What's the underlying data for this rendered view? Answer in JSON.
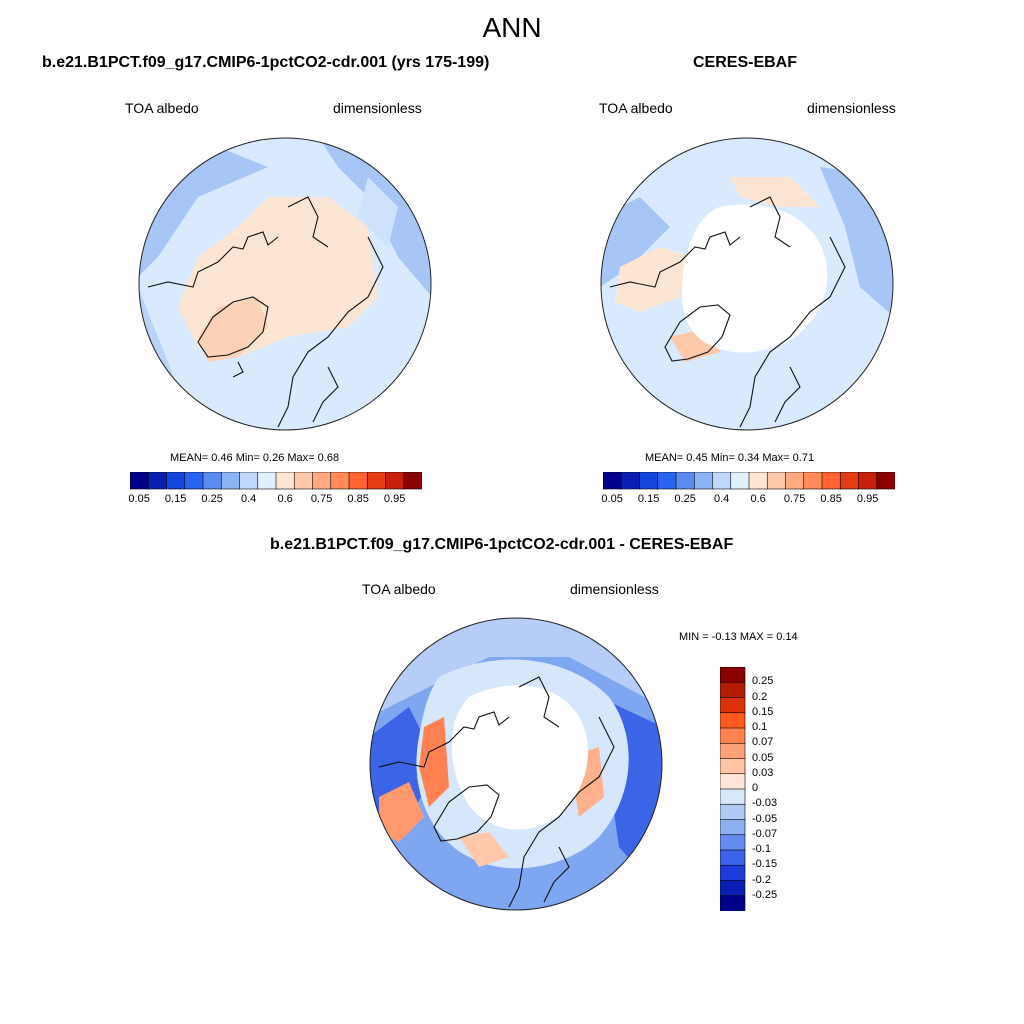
{
  "title": "ANN",
  "panels": [
    {
      "title": "b.e21.B1PCT.f09_g17.CMIP6-1pctCO2-cdr.001 (yrs 175-199)",
      "variable": "TOA albedo",
      "units": "dimensionless",
      "stats": "MEAN=   0.46  Min=   0.26  Max=   0.68"
    },
    {
      "title": "CERES-EBAF",
      "variable": "TOA albedo",
      "units": "dimensionless",
      "stats": "MEAN=   0.45  Min=   0.34  Max=   0.71"
    },
    {
      "title": "b.e21.B1PCT.f09_g17.CMIP6-1pctCO2-cdr.001 - CERES-EBAF",
      "variable": "TOA albedo",
      "units": "dimensionless",
      "stats": "MIN =  -0.13 MAX =   0.14"
    }
  ],
  "colorbar_main": {
    "labels": [
      "0.05",
      "0.15",
      "0.25",
      "0.4",
      "0.6",
      "0.75",
      "0.85",
      "0.95"
    ],
    "colors": [
      "#00008b",
      "#0a1eb4",
      "#1446dc",
      "#2864f0",
      "#5a8cf0",
      "#8cb4f5",
      "#bed7fa",
      "#e1f0ff",
      "#ffe6d2",
      "#ffc8aa",
      "#ffaa82",
      "#ff8c5a",
      "#ff6432",
      "#e63c14",
      "#c8200a",
      "#8b0000"
    ]
  },
  "colorbar_diff": {
    "labels": [
      "0.25",
      "0.2",
      "0.15",
      "0.1",
      "0.07",
      "0.05",
      "0.03",
      "0",
      "-0.03",
      "-0.05",
      "-0.07",
      "-0.1",
      "-0.15",
      "-0.2",
      "-0.25"
    ],
    "colors": [
      "#8b0000",
      "#b41e00",
      "#dc320a",
      "#ff5a1e",
      "#ff8250",
      "#ffa078",
      "#ffc3a5",
      "#ffe6d7",
      "#d7e8fa",
      "#afcaf5",
      "#8caff0",
      "#648cf0",
      "#3c64eb",
      "#1e3cdc",
      "#0a1eb4",
      "#00008b"
    ]
  }
}
